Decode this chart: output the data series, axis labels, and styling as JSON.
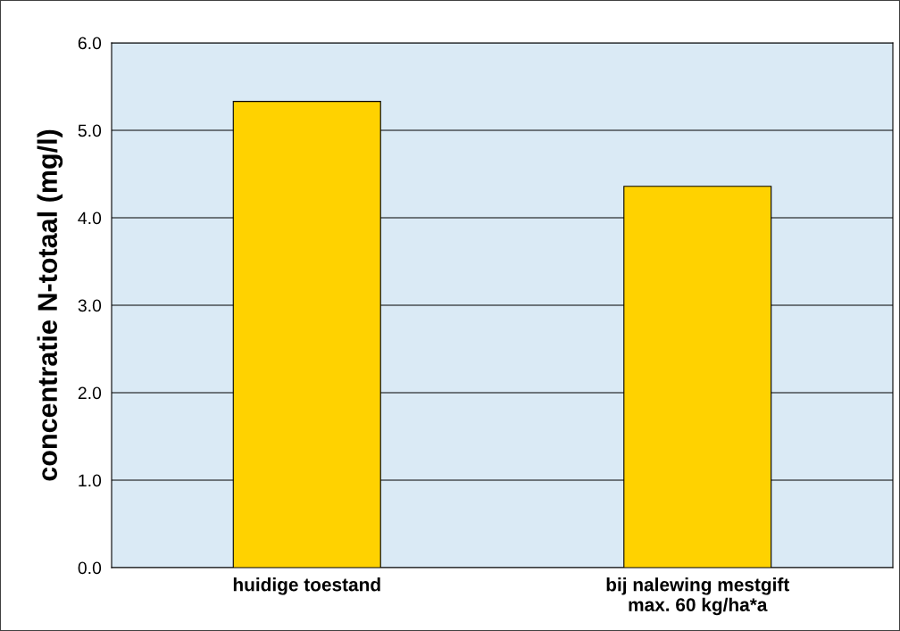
{
  "chart_data": {
    "type": "bar",
    "ylabel": "concentratie N-totaal (mg/l)",
    "categories": [
      "huidige toestand",
      "bij nalewing mestgift\nmax. 60 kg/ha*a"
    ],
    "values": [
      5.33,
      4.36
    ],
    "color": "#ffd200",
    "ylim": [
      0,
      6
    ],
    "yticks": [
      {
        "value": 0,
        "label": "0.0"
      },
      {
        "value": 1,
        "label": "1.0"
      },
      {
        "value": 2,
        "label": "2.0"
      },
      {
        "value": 3,
        "label": "3.0"
      },
      {
        "value": 4,
        "label": "4.0"
      },
      {
        "value": 5,
        "label": "5.0"
      },
      {
        "value": 6,
        "label": "6.0"
      }
    ],
    "grid": "y",
    "legend": false
  }
}
